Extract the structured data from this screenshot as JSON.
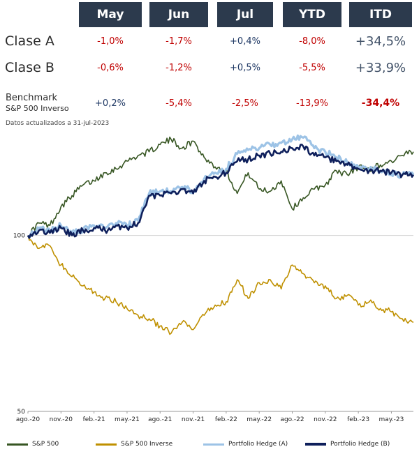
{
  "table": {
    "headers": [
      "May",
      "Jun",
      "Jul",
      "YTD",
      "ITD"
    ],
    "rows": [
      {
        "label": "Clase A",
        "values": [
          "-1,0%",
          "-1,7%",
          "+0,4%",
          "-8,0%",
          "+34,5%"
        ]
      },
      {
        "label": "Clase B",
        "values": [
          "-0,6%",
          "-1,2%",
          "+0,5%",
          "-5,5%",
          "+33,9%"
        ]
      }
    ],
    "benchmark": {
      "label": "Benchmark",
      "sublabel": "S&P 500 Inverso",
      "values": [
        "+0,2%",
        "-5,4%",
        "-2,5%",
        "-13,9%",
        "-34,4%"
      ]
    },
    "note": "Datos actualizados a 31-jul-2023",
    "colors": {
      "header_bg": "#2c3a4d",
      "negative": "#c00000",
      "positive": "#1f3864"
    }
  },
  "chart_data": {
    "type": "line",
    "x_ticks": [
      "ago.-20",
      "nov.-20",
      "feb.-21",
      "may.-21",
      "ago.-21",
      "nov.-21",
      "feb.-22",
      "may.-22",
      "ago.-22",
      "nov.-22",
      "feb.-23",
      "may.-23"
    ],
    "y_ticks": [
      50,
      100
    ],
    "y_scale": "log",
    "ylim": [
      50,
      150
    ],
    "x_range": [
      "2020-08",
      "2023-07"
    ],
    "grid": "horizontal line at 100",
    "legend_position": "bottom",
    "series": [
      {
        "name": "S&P 500",
        "color": "#375623",
        "points": [
          [
            0,
            100
          ],
          [
            1,
            105
          ],
          [
            2,
            104
          ],
          [
            3,
            112
          ],
          [
            4,
            117
          ],
          [
            5,
            122
          ],
          [
            6,
            124
          ],
          [
            7,
            128
          ],
          [
            8,
            130
          ],
          [
            9,
            134
          ],
          [
            10,
            137
          ],
          [
            11,
            139
          ],
          [
            12,
            143
          ],
          [
            13,
            146
          ],
          [
            14,
            141
          ],
          [
            15,
            145
          ],
          [
            16,
            136
          ],
          [
            17,
            131
          ],
          [
            18,
            129
          ],
          [
            19,
            118
          ],
          [
            20,
            128
          ],
          [
            21,
            120
          ],
          [
            22,
            119
          ],
          [
            23,
            124
          ],
          [
            24,
            111
          ],
          [
            25,
            116
          ],
          [
            26,
            120
          ],
          [
            27,
            122
          ],
          [
            28,
            129
          ],
          [
            29,
            127
          ],
          [
            30,
            131
          ],
          [
            31,
            130
          ],
          [
            32,
            132
          ],
          [
            33,
            134
          ],
          [
            34,
            137
          ],
          [
            35,
            139
          ]
        ]
      },
      {
        "name": "S&P 500 Inverse",
        "color": "#bf9000",
        "points": [
          [
            0,
            100
          ],
          [
            1,
            95
          ],
          [
            2,
            96
          ],
          [
            3,
            89
          ],
          [
            4,
            85
          ],
          [
            5,
            82
          ],
          [
            6,
            80
          ],
          [
            7,
            78
          ],
          [
            8,
            77
          ],
          [
            9,
            75
          ],
          [
            10,
            73
          ],
          [
            11,
            72
          ],
          [
            12,
            70
          ],
          [
            13,
            68
          ],
          [
            14,
            71
          ],
          [
            15,
            69
          ],
          [
            16,
            73
          ],
          [
            17,
            76
          ],
          [
            18,
            77
          ],
          [
            19,
            84
          ],
          [
            20,
            78
          ],
          [
            21,
            83
          ],
          [
            22,
            84
          ],
          [
            23,
            81
          ],
          [
            24,
            89
          ],
          [
            25,
            86
          ],
          [
            26,
            83
          ],
          [
            27,
            82
          ],
          [
            28,
            78
          ],
          [
            29,
            79
          ],
          [
            30,
            76
          ],
          [
            31,
            77
          ],
          [
            32,
            75
          ],
          [
            33,
            74
          ],
          [
            34,
            72
          ],
          [
            35,
            71
          ]
        ]
      },
      {
        "name": "Portfolio Hedge (A)",
        "color": "#9dc3e6",
        "points": [
          [
            0,
            100
          ],
          [
            1,
            103
          ],
          [
            2,
            102
          ],
          [
            3,
            104
          ],
          [
            4,
            101
          ],
          [
            5,
            102
          ],
          [
            6,
            104
          ],
          [
            7,
            103
          ],
          [
            8,
            105
          ],
          [
            9,
            104
          ],
          [
            10,
            106
          ],
          [
            11,
            118
          ],
          [
            12,
            119
          ],
          [
            13,
            119
          ],
          [
            14,
            121
          ],
          [
            15,
            119
          ],
          [
            16,
            125
          ],
          [
            17,
            128
          ],
          [
            18,
            130
          ],
          [
            19,
            138
          ],
          [
            20,
            140
          ],
          [
            21,
            141
          ],
          [
            22,
            143
          ],
          [
            23,
            144
          ],
          [
            24,
            146
          ],
          [
            25,
            147
          ],
          [
            26,
            141
          ],
          [
            27,
            139
          ],
          [
            28,
            136
          ],
          [
            29,
            133
          ],
          [
            30,
            131
          ],
          [
            31,
            130
          ],
          [
            32,
            129
          ],
          [
            33,
            127
          ],
          [
            34,
            127
          ],
          [
            35,
            127
          ]
        ]
      },
      {
        "name": "Portfolio Hedge (B)",
        "color": "#0e1f5b",
        "points": [
          [
            0,
            100
          ],
          [
            1,
            102
          ],
          [
            2,
            101
          ],
          [
            3,
            103
          ],
          [
            4,
            100
          ],
          [
            5,
            102
          ],
          [
            6,
            103
          ],
          [
            7,
            102
          ],
          [
            8,
            104
          ],
          [
            9,
            103
          ],
          [
            10,
            105
          ],
          [
            11,
            117
          ],
          [
            12,
            117
          ],
          [
            13,
            118
          ],
          [
            14,
            120
          ],
          [
            15,
            118
          ],
          [
            16,
            124
          ],
          [
            17,
            126
          ],
          [
            18,
            128
          ],
          [
            19,
            134
          ],
          [
            20,
            135
          ],
          [
            21,
            137
          ],
          [
            22,
            138
          ],
          [
            23,
            139
          ],
          [
            24,
            141
          ],
          [
            25,
            142
          ],
          [
            26,
            137
          ],
          [
            27,
            136
          ],
          [
            28,
            134
          ],
          [
            29,
            132
          ],
          [
            30,
            130
          ],
          [
            31,
            129
          ],
          [
            32,
            129
          ],
          [
            33,
            128
          ],
          [
            34,
            127
          ],
          [
            35,
            127
          ]
        ]
      }
    ]
  }
}
